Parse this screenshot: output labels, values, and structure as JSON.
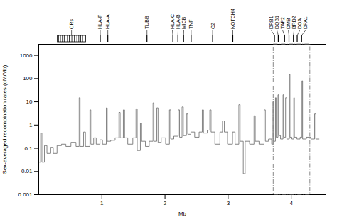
{
  "chart_data": {
    "type": "line",
    "xlabel": "Mb",
    "ylabel": "Sex-averaged recombination rates (cM/Mb)",
    "color": "#666666",
    "log": "y",
    "grid": false,
    "xlim": [
      0.0,
      4.55
    ],
    "ylim": [
      0.001,
      3000
    ],
    "xticks": [
      1,
      2,
      3,
      4
    ],
    "yticks": [
      0.001,
      0.01,
      0.1,
      1,
      10,
      100,
      1000
    ],
    "x": [
      0.0,
      0.03,
      0.03,
      0.05,
      0.05,
      0.09,
      0.09,
      0.13,
      0.13,
      0.19,
      0.19,
      0.23,
      0.23,
      0.29,
      0.29,
      0.36,
      0.36,
      0.43,
      0.43,
      0.51,
      0.51,
      0.59,
      0.59,
      0.64,
      0.64,
      0.655,
      0.655,
      0.71,
      0.71,
      0.74,
      0.74,
      0.81,
      0.81,
      0.825,
      0.825,
      0.87,
      0.87,
      0.91,
      0.91,
      0.97,
      0.97,
      1.01,
      1.01,
      1.07,
      1.07,
      1.085,
      1.085,
      1.14,
      1.14,
      1.21,
      1.21,
      1.27,
      1.27,
      1.29,
      1.29,
      1.34,
      1.34,
      1.36,
      1.36,
      1.41,
      1.41,
      1.49,
      1.49,
      1.54,
      1.54,
      1.56,
      1.56,
      1.61,
      1.61,
      1.63,
      1.63,
      1.69,
      1.69,
      1.75,
      1.75,
      1.81,
      1.81,
      1.825,
      1.825,
      1.87,
      1.87,
      1.89,
      1.89,
      1.94,
      1.94,
      2.01,
      2.01,
      2.07,
      2.07,
      2.09,
      2.09,
      2.14,
      2.14,
      2.21,
      2.21,
      2.23,
      2.23,
      2.27,
      2.27,
      2.29,
      2.29,
      2.34,
      2.34,
      2.36,
      2.36,
      2.41,
      2.41,
      2.47,
      2.47,
      2.54,
      2.54,
      2.59,
      2.59,
      2.61,
      2.61,
      2.67,
      2.67,
      2.71,
      2.71,
      2.73,
      2.73,
      2.79,
      2.79,
      2.87,
      2.87,
      2.91,
      2.91,
      2.94,
      2.94,
      2.99,
      2.99,
      3.07,
      3.07,
      3.11,
      3.11,
      3.17,
      3.17,
      3.19,
      3.19,
      3.24,
      3.24,
      3.27,
      3.27,
      3.34,
      3.34,
      3.41,
      3.41,
      3.43,
      3.43,
      3.49,
      3.49,
      3.57,
      3.57,
      3.59,
      3.59,
      3.64,
      3.64,
      3.69,
      3.69,
      3.71,
      3.71,
      3.72,
      3.72,
      3.75,
      3.75,
      3.76,
      3.76,
      3.79,
      3.79,
      3.8,
      3.8,
      3.83,
      3.83,
      3.87,
      3.87,
      3.88,
      3.88,
      3.91,
      3.91,
      3.93,
      3.93,
      3.97,
      3.97,
      3.98,
      3.98,
      4.01,
      4.01,
      4.04,
      4.04,
      4.05,
      4.05,
      4.09,
      4.09,
      4.14,
      4.14,
      4.17,
      4.17,
      4.18,
      4.18,
      4.24,
      4.24,
      4.31,
      4.31,
      4.37,
      4.37,
      4.39,
      4.39,
      4.44
    ],
    "values": [
      0.025,
      0.025,
      0.45,
      0.45,
      0.025,
      0.025,
      0.13,
      0.13,
      0.06,
      0.06,
      0.11,
      0.11,
      0.06,
      0.06,
      0.13,
      0.13,
      0.15,
      0.15,
      0.12,
      0.12,
      0.18,
      0.18,
      0.12,
      0.12,
      15.0,
      15.0,
      0.12,
      0.12,
      0.5,
      0.5,
      0.12,
      0.12,
      4.5,
      4.5,
      0.15,
      0.15,
      0.28,
      0.28,
      0.15,
      0.15,
      0.23,
      0.23,
      0.15,
      0.15,
      5.5,
      5.5,
      0.2,
      0.2,
      0.22,
      0.22,
      0.28,
      0.28,
      3.5,
      3.5,
      0.28,
      0.28,
      4.5,
      4.5,
      0.28,
      0.28,
      0.15,
      0.15,
      0.28,
      0.28,
      5.0,
      5.0,
      0.08,
      0.08,
      1.2,
      1.2,
      0.2,
      0.2,
      0.12,
      0.12,
      0.2,
      0.2,
      9.0,
      9.0,
      0.2,
      0.2,
      5.5,
      5.5,
      0.18,
      0.18,
      0.28,
      0.28,
      0.15,
      0.15,
      4.5,
      4.5,
      0.25,
      0.25,
      0.33,
      0.33,
      4.5,
      4.5,
      0.3,
      0.3,
      6.0,
      6.0,
      0.35,
      0.35,
      3.0,
      3.0,
      0.4,
      0.4,
      0.5,
      0.5,
      0.3,
      0.3,
      0.5,
      0.5,
      4.5,
      4.5,
      0.45,
      0.45,
      0.6,
      0.6,
      4.5,
      4.5,
      0.5,
      0.5,
      0.15,
      0.15,
      0.5,
      0.5,
      1.5,
      1.5,
      0.5,
      0.5,
      0.15,
      0.15,
      0.5,
      0.5,
      0.15,
      0.15,
      7.5,
      7.5,
      0.2,
      0.2,
      0.008,
      0.008,
      0.2,
      0.2,
      0.15,
      0.15,
      2.5,
      2.5,
      0.2,
      0.2,
      0.15,
      0.15,
      4.5,
      4.5,
      0.2,
      0.2,
      0.25,
      0.25,
      0.15,
      0.15,
      10.0,
      10.0,
      0.2,
      0.2,
      15.0,
      15.0,
      0.3,
      0.3,
      20.0,
      20.0,
      0.35,
      0.35,
      0.25,
      0.25,
      20.0,
      20.0,
      0.3,
      0.3,
      15.0,
      15.0,
      0.25,
      0.25,
      150.0,
      150.0,
      0.3,
      0.3,
      0.25,
      0.25,
      15.0,
      15.0,
      0.3,
      0.3,
      0.25,
      0.25,
      0.3,
      0.3,
      80.0,
      80.0,
      0.25,
      0.25,
      0.3,
      0.3,
      0.25,
      0.25,
      3.0,
      3.0,
      0.25,
      0.25
    ],
    "annotations": [
      {
        "text": "HLA-F",
        "x": 0.98
      },
      {
        "text": "HLA-A",
        "x": 1.1
      },
      {
        "text": "TUBB",
        "x": 1.72
      },
      {
        "text": "HLA-C",
        "x": 2.13
      },
      {
        "text": "HLA-B",
        "x": 2.21
      },
      {
        "text": "MICB",
        "x": 2.3
      },
      {
        "text": "TNF",
        "x": 2.42
      },
      {
        "text": "C2",
        "x": 2.76
      },
      {
        "text": "NOTCH4",
        "x": 3.08
      },
      {
        "text": "DRB1",
        "x": 3.74
      },
      {
        "text": "DQB1",
        "x": 3.8
      },
      {
        "text": "TAP2",
        "x": 3.9
      },
      {
        "text": "DMB",
        "x": 3.97
      },
      {
        "text": "BRD2",
        "x": 4.04
      },
      {
        "text": "DOA",
        "x": 4.1
      },
      {
        "text": "DPA1",
        "x": 4.17
      }
    ],
    "ors_box": {
      "text": "ORs",
      "x0": 0.3,
      "x1": 0.75,
      "stripes": [
        0.32,
        0.35,
        0.38,
        0.41,
        0.46,
        0.49,
        0.53,
        0.57,
        0.61,
        0.64,
        0.67,
        0.7
      ]
    },
    "dashed_box": {
      "x0": 3.72,
      "x1": 4.3
    }
  }
}
